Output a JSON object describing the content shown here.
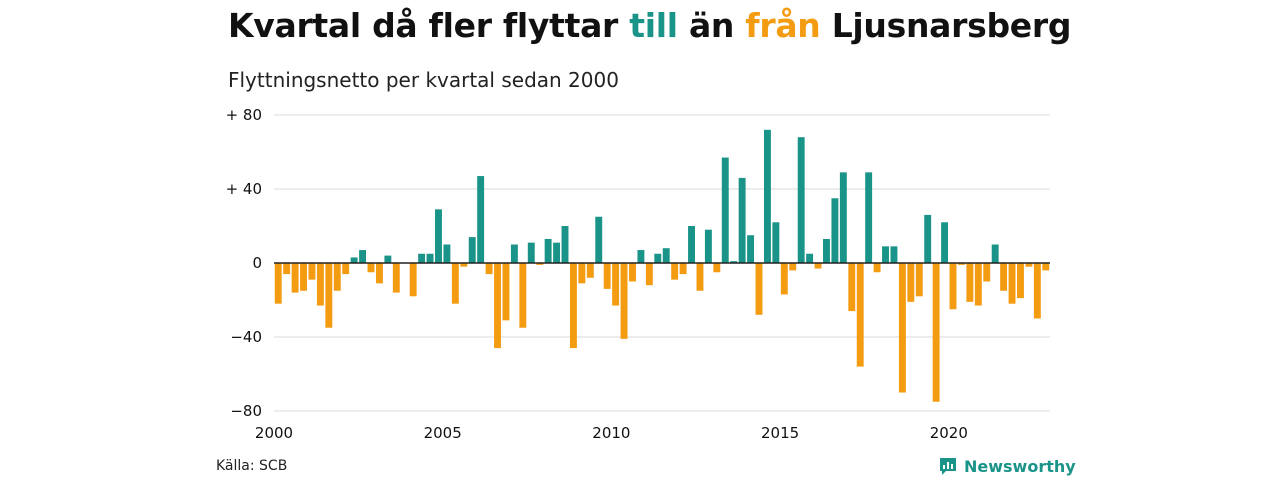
{
  "title": {
    "part1": "Kvartal då fler flyttar ",
    "to": "till",
    "part2": " än ",
    "from": "från",
    "part3": " Ljusnarsberg"
  },
  "subtitle": "Flyttningsnetto per kvartal sedan 2000",
  "source": "Källa: SCB",
  "logo": {
    "text": "Newsworthy",
    "icon": "newsworthy-logo-icon"
  },
  "colors": {
    "positive": "#1a9488",
    "negative": "#f39c12",
    "grid": "#d9d9d9",
    "axis": "#222222"
  },
  "chart_data": {
    "type": "bar",
    "title": "",
    "xlabel": "",
    "ylabel": "",
    "ylim": [
      -85,
      85
    ],
    "xlim": [
      2000,
      2023
    ],
    "yticks": [
      80,
      40,
      0,
      -40,
      -80
    ],
    "ytick_labels": [
      "+ 80",
      "+ 40",
      "0",
      "−40",
      "−80"
    ],
    "xticks": [
      2000,
      2005,
      2010,
      2015,
      2020
    ],
    "xtick_labels": [
      "2000",
      "2005",
      "2010",
      "2015",
      "2020"
    ],
    "grid": true,
    "start_year": 2000,
    "values": [
      -22,
      -6,
      -16,
      -15,
      -9,
      -23,
      -35,
      -15,
      -6,
      3,
      7,
      -5,
      -11,
      4,
      -16,
      0,
      -18,
      5,
      5,
      29,
      10,
      -22,
      -2,
      14,
      47,
      -6,
      -46,
      -31,
      10,
      -35,
      11,
      -1,
      13,
      11,
      20,
      -46,
      -11,
      -8,
      25,
      -14,
      -23,
      -41,
      -10,
      7,
      -12,
      5,
      8,
      -9,
      -6,
      20,
      -15,
      18,
      -5,
      57,
      1,
      46,
      15,
      -28,
      72,
      22,
      -17,
      -4,
      68,
      5,
      -3,
      13,
      35,
      49,
      -26,
      -56,
      49,
      -5,
      9,
      9,
      -70,
      -21,
      -18,
      26,
      -75,
      22,
      -25,
      -1,
      -21,
      -23,
      -10,
      10,
      -15,
      -22,
      -19,
      -2,
      -30,
      -4
    ]
  }
}
